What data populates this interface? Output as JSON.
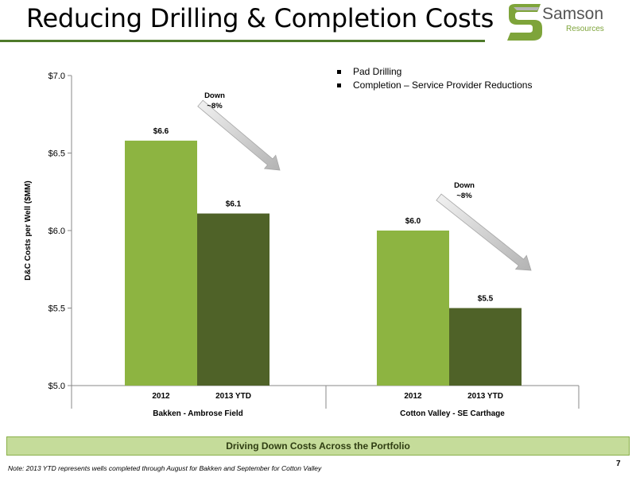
{
  "slide": {
    "title": "Reducing Drilling & Completion Costs",
    "banner": "Driving Down Costs Across the Portfolio",
    "footnote": "Note: 2013 YTD represents wells completed through August for Bakken and September for Cotton Valley",
    "page_number": "7",
    "accent_color": "#4e7a2a"
  },
  "logo": {
    "word": "Samson",
    "sub": "Resources"
  },
  "bullets": [
    "Pad Drilling",
    "Completion – Service Provider Reductions"
  ],
  "chart_data": {
    "type": "bar",
    "ylabel": "D&C Costs per Well ($MM)",
    "ylim": [
      5.0,
      7.0
    ],
    "yticks": [
      5.0,
      5.5,
      6.0,
      6.5,
      7.0
    ],
    "ytick_labels": [
      "$5.0",
      "$5.5",
      "$6.0",
      "$6.5",
      "$7.0"
    ],
    "groups": [
      {
        "name": "Bakken - Ambrose Field",
        "bars": [
          {
            "label": "2012",
            "value": 6.58,
            "value_label": "$6.6",
            "color": "#8db441"
          },
          {
            "label": "2013 YTD",
            "value": 6.11,
            "value_label": "$6.1",
            "color": "#4f6228"
          }
        ],
        "annotation": {
          "line1": "Down",
          "line2": "~8%"
        }
      },
      {
        "name": "Cotton Valley - SE Carthage",
        "bars": [
          {
            "label": "2012",
            "value": 6.0,
            "value_label": "$6.0",
            "color": "#8db441"
          },
          {
            "label": "2013 YTD",
            "value": 5.5,
            "value_label": "$5.5",
            "color": "#4f6228"
          }
        ],
        "annotation": {
          "line1": "Down",
          "line2": "~8%"
        }
      }
    ],
    "grid": false,
    "legend": "none"
  }
}
